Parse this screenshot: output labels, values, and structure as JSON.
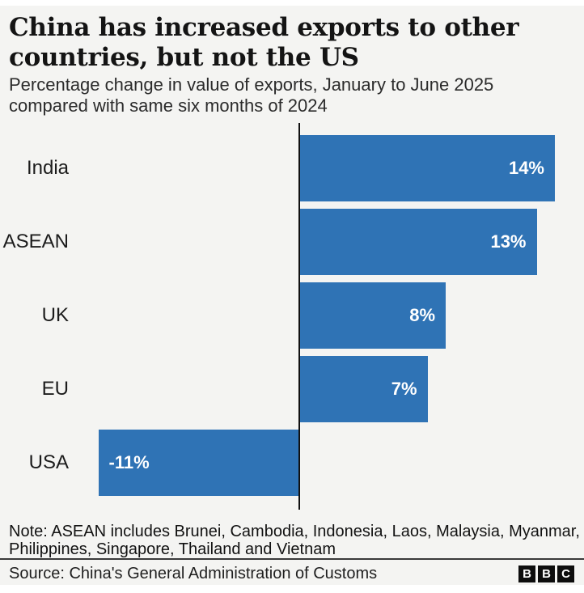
{
  "title": {
    "line1": "China has increased exports to other",
    "line2": "countries, but not the US"
  },
  "subtitle": {
    "line1": "Percentage change in value of exports, January to June 2025",
    "line2": "compared with same six months of 2024"
  },
  "chart_data": {
    "type": "bar",
    "orientation": "horizontal",
    "title": "China has increased exports to other countries, but not the US",
    "subtitle": "Percentage change in value of exports, January to June 2025 compared with same six months of 2024",
    "categories": [
      "India",
      "ASEAN",
      "UK",
      "EU",
      "USA"
    ],
    "values": [
      14,
      13,
      8,
      7,
      -11
    ],
    "value_labels": [
      "14%",
      "13%",
      "8%",
      "7%",
      "-11%"
    ],
    "unit": "%",
    "x_range": [
      -12,
      15.6
    ],
    "grid": false,
    "legend": false,
    "bar_color": "#2f73b5",
    "value_label_color": "#ffffff",
    "zero_axis_color": "#111111"
  },
  "note": {
    "line1": "Note: ASEAN includes Brunei, Cambodia, Indonesia, Laos, Malaysia, Myanmar,",
    "line2": "Philippines, Singapore, Thailand and Vietnam"
  },
  "source": {
    "label": "Source: China's General Administration of Customs"
  },
  "logo": {
    "letters": [
      "B",
      "B",
      "C"
    ]
  },
  "colors": {
    "background": "#f4f4f2",
    "bar": "#2f73b5",
    "title_text": "#141414",
    "body_text": "#2b2b2b",
    "axis": "#111111",
    "divider": "#3a3a3a",
    "logo_block": "#0d0d0d"
  }
}
